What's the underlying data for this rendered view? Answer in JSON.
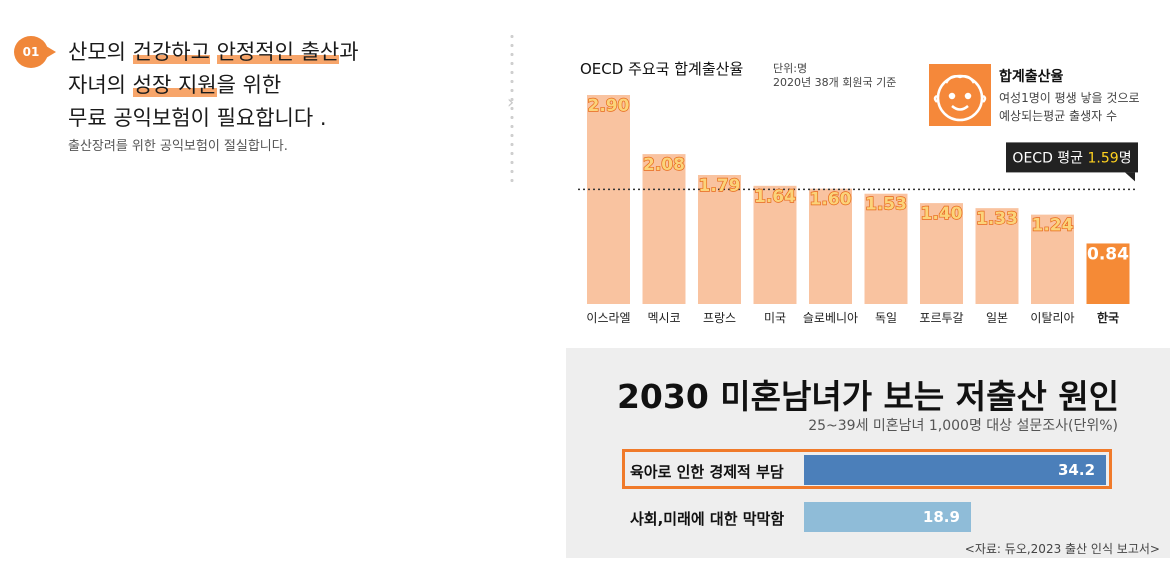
{
  "section": {
    "number": "01",
    "headline": {
      "line1": "산모의 건강하고 안정적인 출산과",
      "line2": "자녀의 성장 지원을 위한",
      "line3": "무료 공익보험이 필요합니다 ."
    },
    "subline": "출산장려를 위한 공익보험이 절실합니다."
  },
  "chart_data": [
    {
      "type": "bar",
      "title": "OECD 주요국 합계출산율",
      "unit_label": "단위:명",
      "note": "2020년 38개 회원국 기준",
      "categories": [
        "이스라엘",
        "멕시코",
        "프랑스",
        "미국",
        "슬로베니아",
        "독일",
        "포르투갈",
        "일본",
        "이탈리아",
        "한국"
      ],
      "values": [
        2.9,
        2.08,
        1.79,
        1.64,
        1.6,
        1.53,
        1.4,
        1.33,
        1.24,
        0.84
      ],
      "value_labels": [
        "2.90",
        "2.08",
        "1.79",
        "1.64",
        "1.60",
        "1.53",
        "1.40",
        "1.33",
        "1.24",
        "0.84"
      ],
      "highlight_category": "한국",
      "reference_line": {
        "value": 1.59,
        "label": "OECD 평균",
        "value_label": "1.59",
        "unit": "명"
      },
      "definition": {
        "title": "합계출산율",
        "line1": "여성1명이 평생 낳을 것으로",
        "line2": "예상되는평균 출생자 수",
        "icon": "baby-face-icon"
      },
      "ylim": [
        0,
        3.0
      ],
      "colors": {
        "bar": "#f9c3a0",
        "highlight": "#f58a36",
        "label_fill": "#fbd37a",
        "label_stroke": "#e86a1a"
      }
    },
    {
      "type": "bar",
      "orientation": "horizontal",
      "title": "2030 미혼남녀가 보는 저출산 원인",
      "subtitle": "25~39세 미혼남녀 1,000명 대상 설문조사(단위%)",
      "categories": [
        "육아로 인한 경제적 부담",
        "사회,미래에 대한 막막함"
      ],
      "values": [
        34.2,
        18.9
      ],
      "value_labels": [
        "34.2",
        "18.9"
      ],
      "highlight_category": "육아로 인한 경제적 부담",
      "source": "<자료: 듀오,2023 출산 인식 보고서>",
      "xlim": [
        0,
        35
      ],
      "colors": {
        "primary": "#4b7fba",
        "secondary": "#8fbcd8",
        "box": "#f07a2a"
      }
    }
  ]
}
